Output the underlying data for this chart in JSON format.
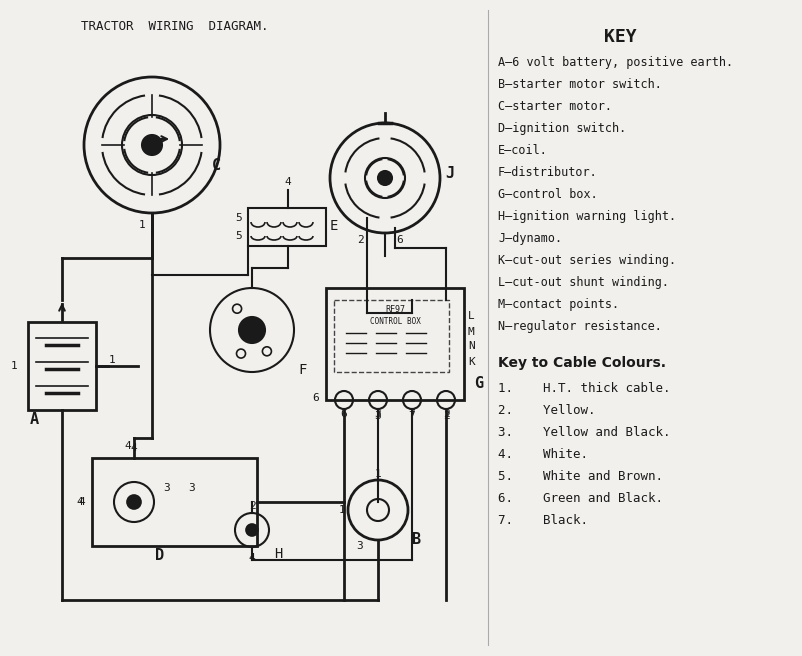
{
  "title": "TRACTOR  WIRING  DIAGRAM.",
  "bg_color": "#f2f0ec",
  "text_color": "#1a1a1a",
  "key_title": "KEY",
  "key_items": [
    "A—6 volt battery, positive earth.",
    "B—starter motor switch.",
    "C—starter motor.",
    "D—ignition switch.",
    "E—coil.",
    "F—distributor.",
    "G—control box.",
    "H—ignition warning light.",
    "J—dynamo.",
    "K—cut-out series winding.",
    "L—cut-out shunt winding.",
    "M—contact points.",
    "N—regulator resistance."
  ],
  "cable_title": "Key to Cable Colours.",
  "cable_items": [
    "1.    H.T. thick cable.",
    "2.    Yellow.",
    "3.    Yellow and Black.",
    "4.    White.",
    "5.    White and Brown.",
    "6.    Green and Black.",
    "7.    Black."
  ]
}
